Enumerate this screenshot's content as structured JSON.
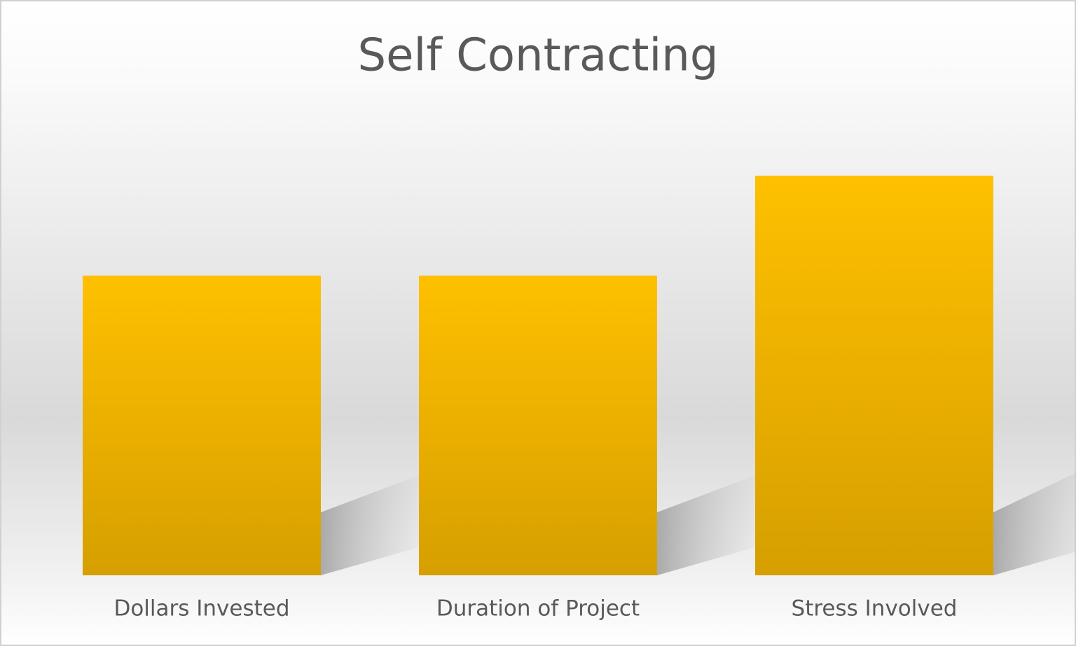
{
  "chart_data": {
    "type": "bar",
    "title": "Self Contracting",
    "categories": [
      "Dollars Invested",
      "Duration of Project",
      "Stress Involved"
    ],
    "values": [
      3,
      3,
      4
    ],
    "color": "#ffc000"
  }
}
